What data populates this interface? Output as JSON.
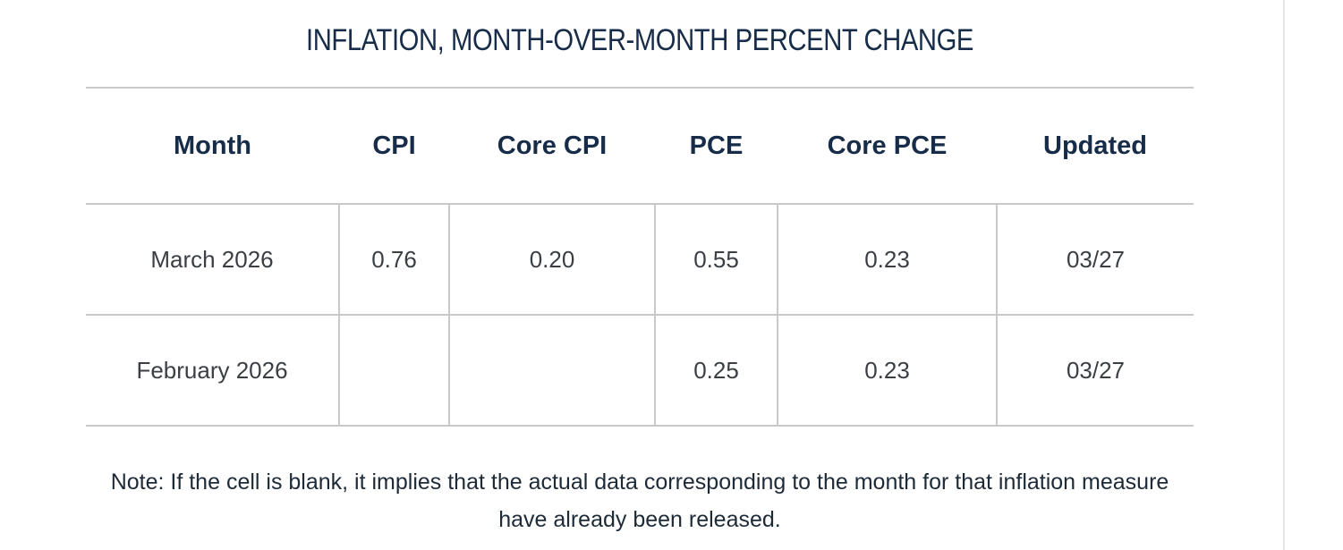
{
  "title": "INFLATION, MONTH-OVER-MONTH PERCENT CHANGE",
  "table": {
    "headers": [
      "Month",
      "CPI",
      "Core CPI",
      "PCE",
      "Core PCE",
      "Updated"
    ],
    "rows": [
      [
        "March 2026",
        "0.76",
        "0.20",
        "0.55",
        "0.23",
        "03/27"
      ],
      [
        "February 2026",
        "",
        "",
        "0.25",
        "0.23",
        "03/27"
      ]
    ]
  },
  "note": "Note: If the cell is blank, it implies that the actual data corresponding to the month for that inflation measure have already been released.",
  "colors": {
    "heading": "#162c48",
    "cell_text": "#3b3f45",
    "grid": "#c9c9c9"
  }
}
